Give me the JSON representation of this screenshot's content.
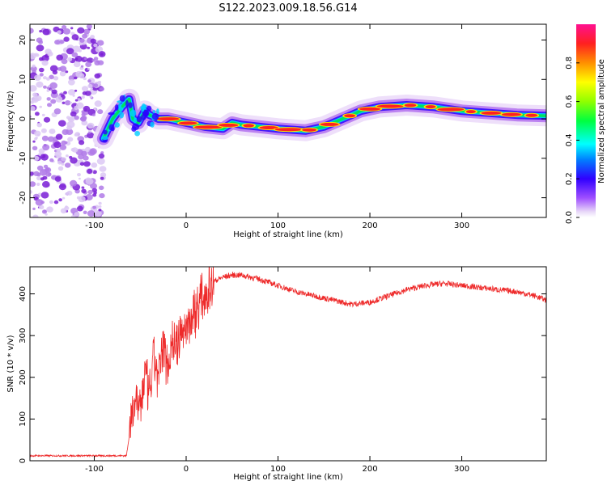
{
  "title": "S122.2023.009.18.56.G14",
  "colors": {
    "snr_line": "#ee2a2a",
    "axis": "#000000",
    "background": "#ffffff"
  },
  "chart_data": [
    {
      "type": "heatmap",
      "xlabel": "Height of straight line (km)",
      "ylabel": "Frequency (Hz)",
      "xlim": [
        -170,
        392
      ],
      "ylim": [
        -25,
        24
      ],
      "xticks": [
        -100,
        0,
        100,
        200,
        300
      ],
      "yticks": [
        -20,
        -10,
        0,
        10,
        20
      ],
      "colorbar": {
        "label": "Normalized spectral amplitude",
        "range": [
          0,
          1
        ],
        "ticks": [
          "0.0",
          "0.2",
          "0.4",
          "0.6",
          "0.8"
        ],
        "tick_values": [
          0,
          0.2,
          0.4,
          0.6,
          0.8
        ]
      },
      "ridge": {
        "x": [
          -90,
          -80,
          -70,
          -62,
          -58,
          -52,
          -45,
          -40,
          -35,
          -30,
          -20,
          0,
          20,
          40,
          50,
          60,
          80,
          100,
          130,
          150,
          170,
          190,
          210,
          240,
          270,
          300,
          330,
          360,
          392
        ],
        "freq": [
          -5,
          0,
          3,
          5,
          0,
          -1,
          2,
          1,
          0.5,
          0,
          0,
          -1,
          -2,
          -2.5,
          -1,
          -1.5,
          -2,
          -2.5,
          -3,
          -2,
          0,
          2,
          3,
          3.5,
          3,
          2,
          1.5,
          1,
          0.8
        ]
      },
      "noise_region": {
        "x": [
          -170,
          -90
        ],
        "freq": [
          -25,
          24
        ]
      }
    },
    {
      "type": "line",
      "xlabel": "Height of straight line (km)",
      "ylabel": "SNR (10 * v/v)",
      "xlim": [
        -170,
        392
      ],
      "ylim": [
        0,
        465
      ],
      "xticks": [
        -100,
        0,
        100,
        200,
        300
      ],
      "yticks": [
        0,
        100,
        200,
        300,
        400
      ],
      "series": [
        {
          "x": [
            -170,
            -100,
            -65,
            -60,
            -55,
            -50,
            -45,
            -40,
            -35,
            -30,
            -25,
            -20,
            -15,
            -10,
            -5,
            0,
            10,
            20,
            30,
            40,
            50,
            60,
            70,
            80,
            100,
            120,
            140,
            160,
            180,
            200,
            220,
            240,
            260,
            280,
            300,
            320,
            340,
            360,
            380,
            392
          ],
          "values": [
            12,
            12,
            12,
            90,
            160,
            120,
            210,
            150,
            250,
            190,
            280,
            230,
            290,
            270,
            310,
            320,
            360,
            400,
            430,
            440,
            445,
            445,
            440,
            435,
            420,
            405,
            395,
            385,
            375,
            380,
            395,
            410,
            420,
            425,
            420,
            415,
            410,
            405,
            395,
            385
          ]
        }
      ]
    }
  ]
}
